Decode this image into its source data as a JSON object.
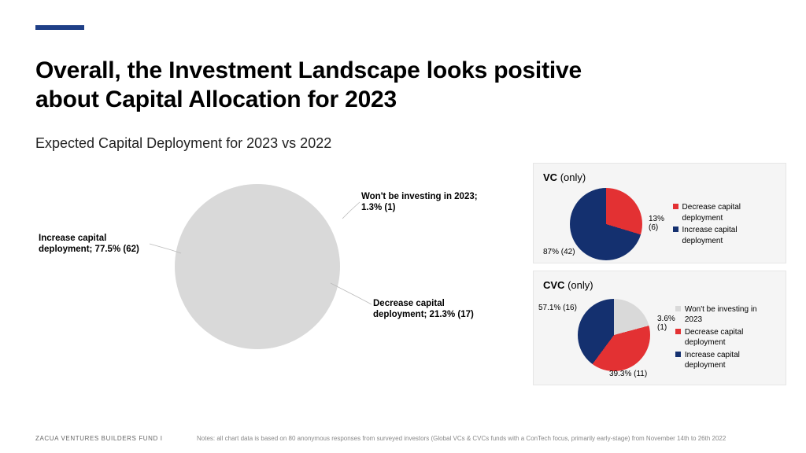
{
  "accent_color": "#1f3f87",
  "title": "Overall, the Investment Landscape looks positive about Capital Allocation for 2023",
  "subtitle": "Expected Capital Deployment for 2023 vs 2022",
  "colors": {
    "increase": "#14306f",
    "decrease": "#e33133",
    "wont": "#d9d9d9"
  },
  "main_chart": {
    "type": "pie",
    "start_angle_deg": 0,
    "slices": [
      {
        "key": "wont",
        "label": "Won't be investing in 2023; 1.3% (1)",
        "pct": 1.3,
        "count": 1
      },
      {
        "key": "decrease",
        "label": "Decrease capital deployment; 21.3% (17)",
        "pct": 21.3,
        "count": 17
      },
      {
        "key": "increase",
        "label": "Increase capital deployment; 77.5% (62)",
        "pct": 77.5,
        "count": 62
      }
    ]
  },
  "vc_panel": {
    "title": "VC",
    "title_suffix": "(only)",
    "type": "pie",
    "slices": [
      {
        "key": "decrease",
        "label": "13% (6)",
        "pct": 13,
        "count": 6
      },
      {
        "key": "increase",
        "label": "87% (42)",
        "pct": 87,
        "count": 42
      }
    ],
    "legend": [
      {
        "key": "decrease",
        "text": "Decrease capital deployment"
      },
      {
        "key": "increase",
        "text": "Increase capital deployment"
      }
    ]
  },
  "cvc_panel": {
    "title": "CVC",
    "title_suffix": "(only)",
    "type": "pie",
    "slices": [
      {
        "key": "wont",
        "label": "3.6% (1)",
        "pct": 3.6,
        "count": 1
      },
      {
        "key": "decrease",
        "label": "39.3% (11)",
        "pct": 39.3,
        "count": 11
      },
      {
        "key": "increase",
        "label": "57.1% (16)",
        "pct": 57.1,
        "count": 16
      }
    ],
    "legend": [
      {
        "key": "wont",
        "text": "Won't be investing in 2023"
      },
      {
        "key": "decrease",
        "text": "Decrease capital deployment"
      },
      {
        "key": "increase",
        "text": "Increase capital deployment"
      }
    ]
  },
  "footer_left": "ZACUA VENTURES   BUILDERS   FUND  I",
  "footer_note": "Notes: all chart data is based on 80 anonymous responses from surveyed investors (Global VCs & CVCs funds with a ConTech focus, primarily early-stage) from November 14th to 26th 2022"
}
